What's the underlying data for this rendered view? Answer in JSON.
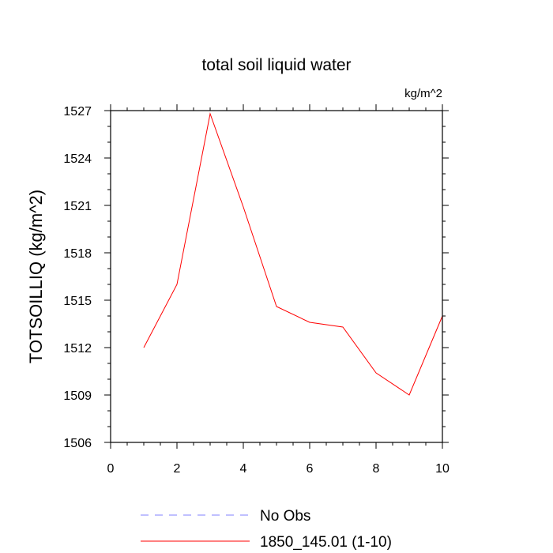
{
  "chart_data": {
    "type": "line",
    "title": "total soil liquid water",
    "units": "kg/m^2",
    "xlabel": "",
    "ylabel": "TOTSOILLIQ  (kg/m^2)",
    "xlim": [
      0,
      10
    ],
    "ylim": [
      1506,
      1527
    ],
    "xticks": [
      0,
      2,
      4,
      6,
      8,
      10
    ],
    "yticks": [
      1506,
      1509,
      1512,
      1515,
      1518,
      1521,
      1524,
      1527
    ],
    "grid": false,
    "legend_position": "bottom",
    "series": [
      {
        "name": "No Obs",
        "color": "#8080ff",
        "dash": "dashed",
        "x": [],
        "y": []
      },
      {
        "name": "1850_145.01 (1-10)",
        "color": "#ff0000",
        "dash": "solid",
        "x": [
          1,
          2,
          3,
          4,
          5,
          6,
          7,
          8,
          9,
          10
        ],
        "y": [
          1512.0,
          1516.0,
          1526.8,
          1520.9,
          1514.6,
          1513.6,
          1513.3,
          1510.4,
          1509.0,
          1514.0
        ]
      }
    ]
  }
}
